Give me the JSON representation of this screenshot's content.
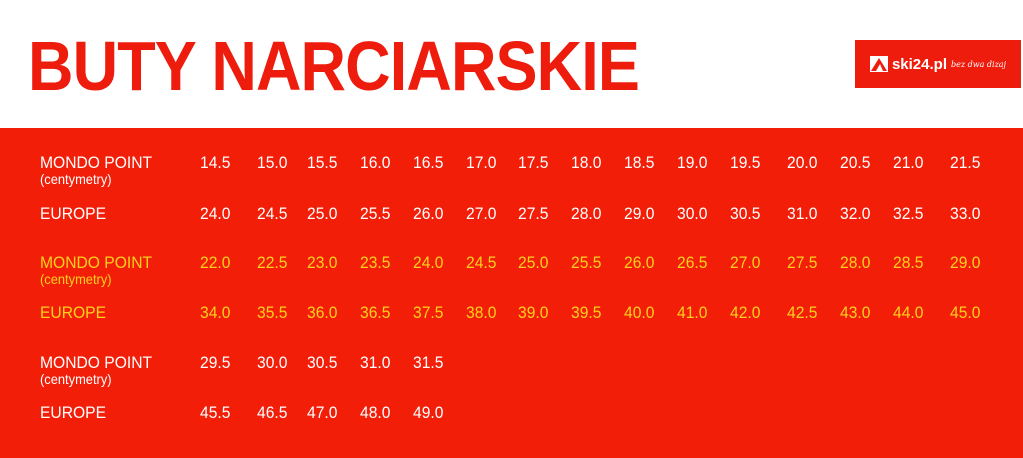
{
  "title": "BUTY NARCIARSKIE",
  "logo": {
    "brand": "ski24.pl",
    "tagline": "bez dwa dizaj"
  },
  "colors": {
    "red": "#f21e08",
    "white": "#ffffff",
    "yellow": "#ffd21a"
  },
  "labels": {
    "mondo": "MONDO POINT",
    "mondo_unit": "(centymetry)",
    "europe": "EUROPE"
  },
  "groups": [
    {
      "color": "white",
      "mondo": [
        "14.5",
        "15.0",
        "15.5",
        "16.0",
        "16.5",
        "17.0",
        "17.5",
        "18.0",
        "18.5",
        "19.0",
        "19.5",
        "20.0",
        "20.5",
        "21.0",
        "21.5"
      ],
      "europe": [
        "24.0",
        "24.5",
        "25.0",
        "25.5",
        "26.0",
        "27.0",
        "27.5",
        "28.0",
        "29.0",
        "30.0",
        "30.5",
        "31.0",
        "32.0",
        "32.5",
        "33.0"
      ]
    },
    {
      "color": "yellow",
      "mondo": [
        "22.0",
        "22.5",
        "23.0",
        "23.5",
        "24.0",
        "24.5",
        "25.0",
        "25.5",
        "26.0",
        "26.5",
        "27.0",
        "27.5",
        "28.0",
        "28.5",
        "29.0"
      ],
      "europe": [
        "34.0",
        "35.5",
        "36.0",
        "36.5",
        "37.5",
        "38.0",
        "39.0",
        "39.5",
        "40.0",
        "41.0",
        "42.0",
        "42.5",
        "43.0",
        "44.0",
        "45.0"
      ]
    },
    {
      "color": "white",
      "mondo": [
        "29.5",
        "30.0",
        "30.5",
        "31.0",
        "31.5"
      ],
      "europe": [
        "45.5",
        "46.5",
        "47.0",
        "48.0",
        "49.0"
      ]
    }
  ]
}
